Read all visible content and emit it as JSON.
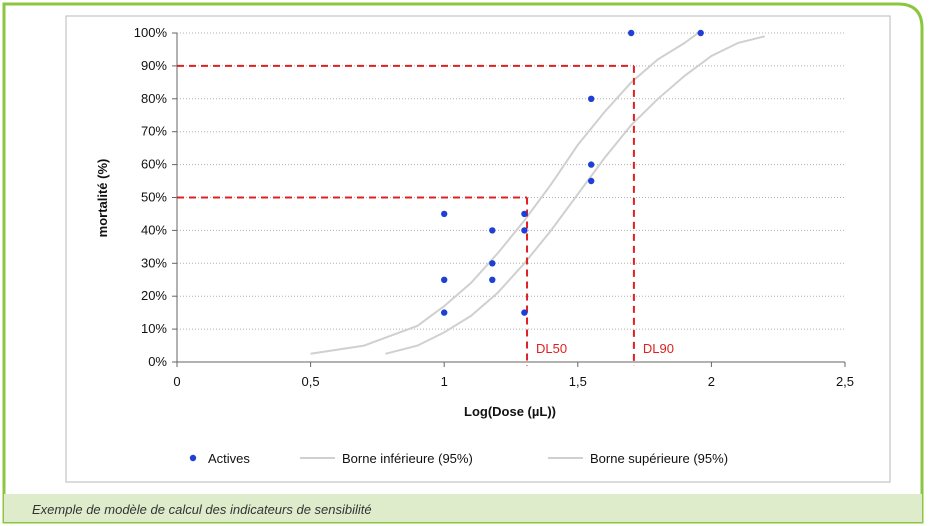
{
  "caption": "Exemple de modèle de calcul des indicateurs de sensibilité",
  "colors": {
    "frame": "#8cc63f",
    "caption_bg": "#deeccb",
    "points": "#1f3fd6",
    "bounds": "#d0d0d0",
    "guides": "#e02020",
    "grid": "#b0b0b0"
  },
  "chart_data": {
    "type": "scatter",
    "xlabel": "Log(Dose (µL))",
    "ylabel": "mortalité (%)",
    "xlim": [
      0,
      2.5
    ],
    "ylim": [
      0,
      100
    ],
    "x_ticks": [
      "0",
      "0,5",
      "1",
      "1,5",
      "2",
      "2,5"
    ],
    "y_ticks": [
      "0%",
      "10%",
      "20%",
      "30%",
      "40%",
      "50%",
      "60%",
      "70%",
      "80%",
      "90%",
      "100%"
    ],
    "grid": "horizontal dotted",
    "legend_position": "bottom",
    "series": [
      {
        "name": "Actives",
        "type": "scatter",
        "color": "#1f3fd6",
        "points": [
          [
            1.0,
            15
          ],
          [
            1.0,
            25
          ],
          [
            1.0,
            45
          ],
          [
            1.18,
            25
          ],
          [
            1.18,
            30
          ],
          [
            1.18,
            40
          ],
          [
            1.3,
            15
          ],
          [
            1.3,
            40
          ],
          [
            1.3,
            45
          ],
          [
            1.55,
            55
          ],
          [
            1.55,
            60
          ],
          [
            1.55,
            80
          ],
          [
            1.7,
            100
          ],
          [
            1.96,
            100
          ]
        ]
      },
      {
        "name": "Borne inférieure (95%)",
        "type": "line",
        "color": "#d0d0d0",
        "points": [
          [
            0.5,
            2.5
          ],
          [
            0.7,
            5
          ],
          [
            0.9,
            11
          ],
          [
            1.0,
            17
          ],
          [
            1.1,
            24
          ],
          [
            1.2,
            33
          ],
          [
            1.3,
            43
          ],
          [
            1.4,
            54
          ],
          [
            1.5,
            66
          ],
          [
            1.6,
            76
          ],
          [
            1.7,
            85
          ],
          [
            1.8,
            92
          ],
          [
            1.9,
            97
          ],
          [
            1.95,
            100
          ]
        ]
      },
      {
        "name": "Borne supérieure (95%)",
        "type": "line",
        "color": "#d0d0d0",
        "points": [
          [
            0.78,
            2.5
          ],
          [
            0.9,
            5
          ],
          [
            1.0,
            9
          ],
          [
            1.1,
            14
          ],
          [
            1.2,
            21
          ],
          [
            1.3,
            30
          ],
          [
            1.4,
            40
          ],
          [
            1.5,
            51
          ],
          [
            1.6,
            62
          ],
          [
            1.7,
            72
          ],
          [
            1.8,
            80
          ],
          [
            1.9,
            87
          ],
          [
            2.0,
            93
          ],
          [
            2.1,
            97
          ],
          [
            2.2,
            99
          ]
        ]
      }
    ],
    "annotations": [
      {
        "label": "DL50",
        "x": 1.31,
        "y": 50
      },
      {
        "label": "DL90",
        "x": 1.71,
        "y": 90
      }
    ]
  }
}
